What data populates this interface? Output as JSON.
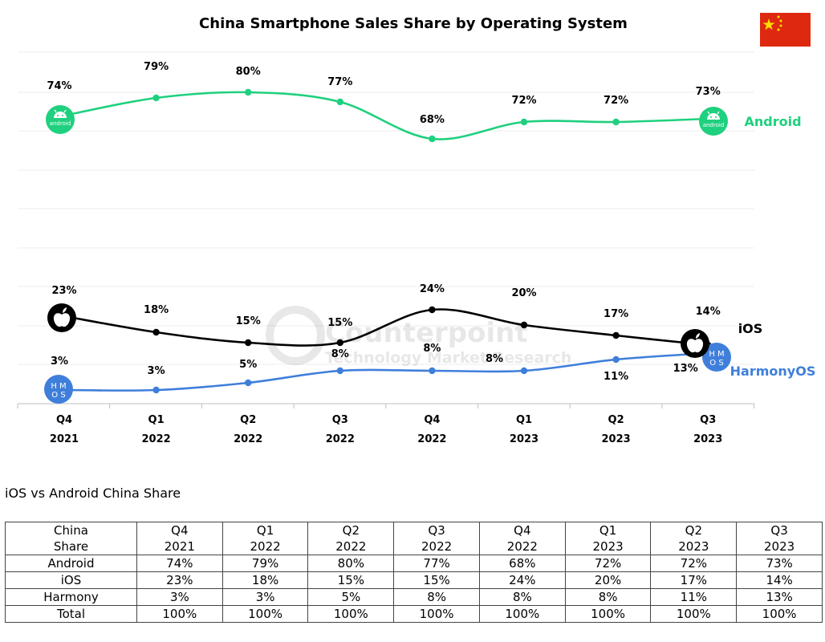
{
  "title": "China Smartphone Sales Share by Operating System",
  "flag_icon": "china-flag-icon",
  "watermark": {
    "brand": "Counterpoint",
    "tagline": "Technology Market Research"
  },
  "chart_data": {
    "type": "line",
    "title": "China Smartphone Sales Share by Operating System",
    "categories": [
      {
        "quarter": "Q4",
        "year": "2021"
      },
      {
        "quarter": "Q1",
        "year": "2022"
      },
      {
        "quarter": "Q2",
        "year": "2022"
      },
      {
        "quarter": "Q3",
        "year": "2022"
      },
      {
        "quarter": "Q4",
        "year": "2022"
      },
      {
        "quarter": "Q1",
        "year": "2023"
      },
      {
        "quarter": "Q2",
        "year": "2023"
      },
      {
        "quarter": "Q3",
        "year": "2023"
      }
    ],
    "series": [
      {
        "name": "Android",
        "color": "#1fd07e",
        "values": [
          74,
          79,
          80,
          77,
          68,
          72,
          72,
          73
        ],
        "labels": [
          "74%",
          "79%",
          "80%",
          "77%",
          "68%",
          "72%",
          "72%",
          "73%"
        ],
        "icon": "android-icon"
      },
      {
        "name": "iOS",
        "color": "#000000",
        "values": [
          23,
          18,
          15,
          15,
          24,
          20,
          17,
          14
        ],
        "labels": [
          "23%",
          "18%",
          "15%",
          "15%",
          "24%",
          "20%",
          "17%",
          "14%"
        ],
        "icon": "apple-icon"
      },
      {
        "name": "HarmonyOS",
        "color": "#3f7fdb",
        "values": [
          3,
          3,
          5,
          8,
          8,
          8,
          11,
          13
        ],
        "labels": [
          "3%",
          "3%",
          "5%",
          "8%",
          "8%",
          "8%",
          "11%",
          "13%"
        ],
        "icon": "harmonyos-icon"
      }
    ],
    "grid": true,
    "icon_text": {
      "android": "android",
      "harmony_line1": "H M",
      "harmony_line2": "O S"
    }
  },
  "table": {
    "caption": "iOS vs Android China Share",
    "header": [
      "China\nShare",
      "Q4\n2021",
      "Q1\n2022",
      "Q2\n2022",
      "Q3\n2022",
      "Q4\n2022",
      "Q1\n2023",
      "Q2\n2023",
      "Q3\n2023"
    ],
    "rows": [
      [
        "Android",
        "74%",
        "79%",
        "80%",
        "77%",
        "68%",
        "72%",
        "72%",
        "73%"
      ],
      [
        "iOS",
        "23%",
        "18%",
        "15%",
        "15%",
        "24%",
        "20%",
        "17%",
        "14%"
      ],
      [
        "Harmony",
        "3%",
        "3%",
        "5%",
        "8%",
        "8%",
        "8%",
        "11%",
        "13%"
      ],
      [
        "Total",
        "100%",
        "100%",
        "100%",
        "100%",
        "100%",
        "100%",
        "100%",
        "100%"
      ]
    ]
  }
}
